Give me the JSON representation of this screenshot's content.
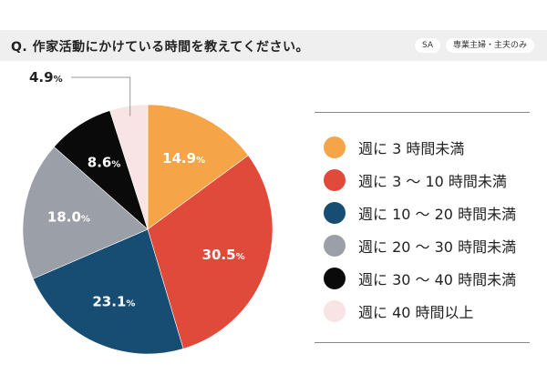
{
  "header": {
    "question": "Q. 作家活動にかけている時間を教えてください。",
    "tags": [
      "SA",
      "専業主婦・主夫のみ"
    ]
  },
  "chart_data": {
    "type": "pie",
    "title": "",
    "unit": "%",
    "slices": [
      {
        "label": "週に3時間未満",
        "value": 14.9,
        "display": "14.9",
        "color": "#f5a447"
      },
      {
        "label": "週に3〜10時間未満",
        "value": 30.5,
        "display": "30.5",
        "color": "#e04a3a"
      },
      {
        "label": "週に10〜20時間未満",
        "value": 23.1,
        "display": "23.1",
        "color": "#174d72"
      },
      {
        "label": "週に20〜30時間未満",
        "value": 18.0,
        "display": "18.0",
        "color": "#9b9fa8"
      },
      {
        "label": "週に30〜40時間未満",
        "value": 8.6,
        "display": "8.6",
        "color": "#0a0a0a"
      },
      {
        "label": "週に40時間以上",
        "value": 4.9,
        "display": "4.9",
        "color": "#f8e4e4"
      }
    ],
    "legend": {
      "placement": "right",
      "labels": [
        "週に 3 時間未満",
        "週に 3 〜 10 時間未満",
        "週に 10 〜 20 時間未満",
        "週に 20 〜 30 時間未満",
        "週に 30 〜 40 時間未満",
        "週に 40 時間以上"
      ]
    }
  }
}
